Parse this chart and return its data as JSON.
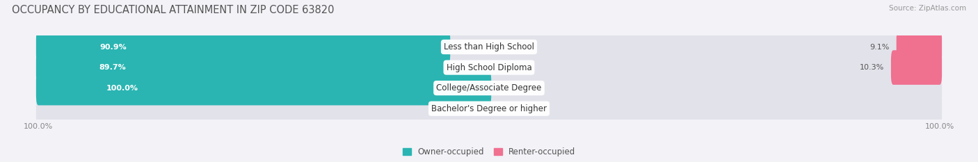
{
  "title": "OCCUPANCY BY EDUCATIONAL ATTAINMENT IN ZIP CODE 63820",
  "source": "Source: ZipAtlas.com",
  "categories": [
    "Less than High School",
    "High School Diploma",
    "College/Associate Degree",
    "Bachelor's Degree or higher"
  ],
  "owner_pct": [
    90.9,
    89.7,
    100.0,
    0.0
  ],
  "renter_pct": [
    9.1,
    10.3,
    0.0,
    0.0
  ],
  "owner_color": "#2ab5b2",
  "renter_color": "#f07090",
  "renter_color_light": "#f5b8cc",
  "owner_color_light": "#a0dede",
  "bg_color": "#f2f2f7",
  "bar_bg_color": "#e2e2ea",
  "title_fontsize": 10.5,
  "source_fontsize": 7.5,
  "label_fontsize": 8.0,
  "cat_fontsize": 8.5,
  "axis_label_fontsize": 8,
  "legend_fontsize": 8.5,
  "bar_height": 0.68
}
